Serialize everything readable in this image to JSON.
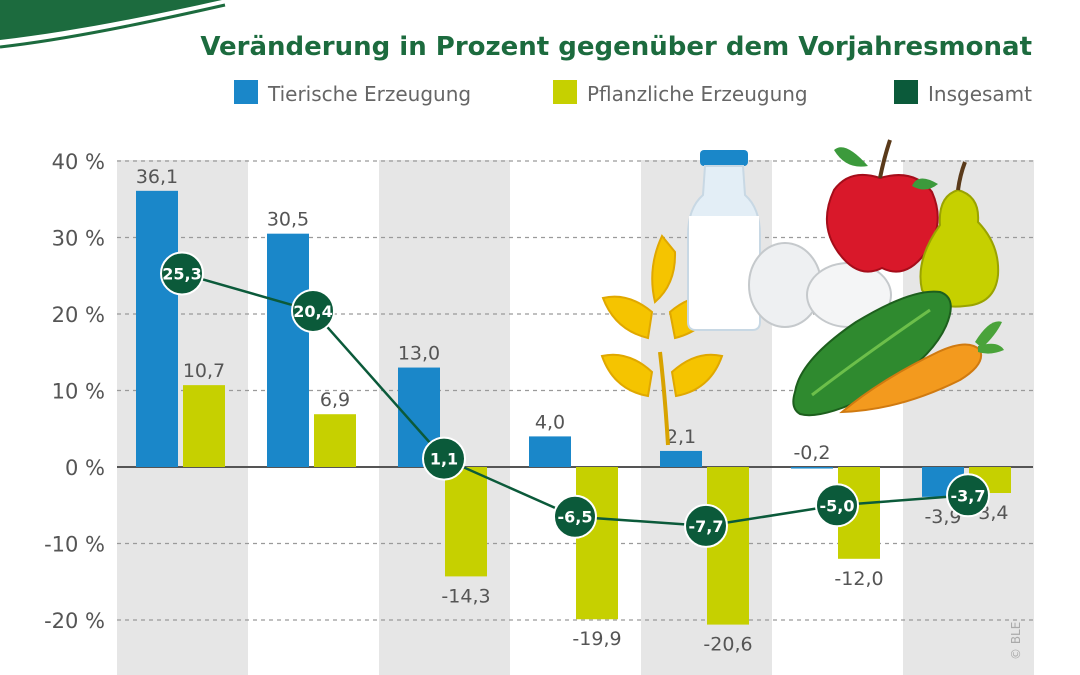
{
  "colors": {
    "background": "#ffffff",
    "band": "#e6e6e6",
    "grid": "#9a9a9a",
    "tierisch": "#1a87c9",
    "pflanzlich": "#c6d000",
    "insgesamt": "#0b5a3a",
    "label": "#555555",
    "title": "#1c6b3e"
  },
  "illustration": {
    "icons": [
      "wheat-icon",
      "milk-bottle-icon",
      "eggs-icon",
      "apple-icon",
      "pear-icon",
      "cucumber-icon",
      "carrot-icon"
    ]
  },
  "chart_data": {
    "type": "bar",
    "title": "Veränderung in Prozent gegenüber dem Vorjahresmonat",
    "categories": [
      "",
      "",
      "",
      "",
      "",
      "",
      ""
    ],
    "series": [
      {
        "name": "Tierische Erzeugung",
        "type": "bar",
        "values": [
          36.1,
          30.5,
          13.0,
          4.0,
          2.1,
          -0.2,
          -3.9
        ],
        "labels": [
          "36,1",
          "30,5",
          "13,0",
          "4,0",
          "2,1",
          "-0,2",
          "-3,9"
        ]
      },
      {
        "name": "Pflanzliche Erzeugung",
        "type": "bar",
        "values": [
          10.7,
          6.9,
          -14.3,
          -19.9,
          -20.6,
          -12.0,
          -3.4
        ],
        "labels": [
          "10,7",
          "6,9",
          "-14,3",
          "-19,9",
          "-20,6",
          "-12,0",
          "-3,4"
        ]
      },
      {
        "name": "Insgesamt",
        "type": "line",
        "values": [
          25.3,
          20.4,
          1.1,
          -6.5,
          -7.7,
          -5.0,
          -3.7
        ],
        "labels": [
          "25,3",
          "20,4",
          "1,1",
          "-6,5",
          "-7,7",
          "-5,0",
          "-3,7"
        ]
      }
    ],
    "yticks": [
      40,
      30,
      20,
      10,
      0,
      -10,
      -20
    ],
    "ytick_labels": [
      "40 %",
      "30 %",
      "20 %",
      "10 %",
      "0 %",
      "-10 %",
      "-20 %"
    ],
    "ylim": [
      -27,
      40
    ],
    "grid": true,
    "legend": "top",
    "credit": "© BLE"
  }
}
